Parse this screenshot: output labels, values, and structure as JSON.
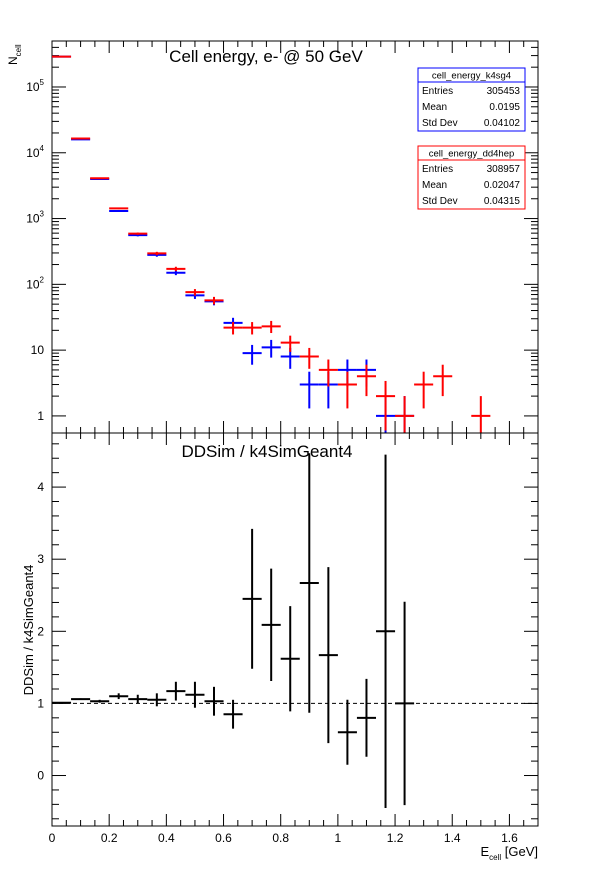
{
  "chart_data": [
    {
      "type": "scatter",
      "subtype": "histogram-errorbars",
      "title": "Cell energy,  e- @ 50 GeV",
      "xlabel": "",
      "ylabel_main": "N",
      "ylabel_sub": "cell",
      "yscale": "log",
      "xlim": [
        0,
        1.7
      ],
      "ylim": [
        0.55,
        500000
      ],
      "ytick_labels": [
        {
          "v": 1,
          "label": "1"
        },
        {
          "v": 10,
          "label": "10"
        },
        {
          "v": 100,
          "label": "10",
          "exp": "2"
        },
        {
          "v": 1000,
          "label": "10",
          "exp": "3"
        },
        {
          "v": 10000,
          "label": "10",
          "exp": "4"
        },
        {
          "v": 100000,
          "label": "10",
          "exp": "5"
        }
      ],
      "bin_width": 0.0667,
      "series": [
        {
          "name": "cell_energy_k4sg4",
          "color": "#0000ff",
          "stats": [
            [
              "Entries",
              "305453"
            ],
            [
              "Mean",
              "0.0195"
            ],
            [
              "Std Dev",
              "0.04102"
            ]
          ],
          "points": [
            {
              "x": 0.0333,
              "y": 290000,
              "yerr_lo": 540,
              "yerr_hi": 540
            },
            {
              "x": 0.1,
              "y": 16000,
              "yerr_lo": 126,
              "yerr_hi": 126
            },
            {
              "x": 0.1667,
              "y": 4000,
              "yerr_lo": 63,
              "yerr_hi": 63
            },
            {
              "x": 0.2333,
              "y": 1300,
              "yerr_lo": 36,
              "yerr_hi": 36
            },
            {
              "x": 0.3,
              "y": 560,
              "yerr_lo": 24,
              "yerr_hi": 24
            },
            {
              "x": 0.3667,
              "y": 280,
              "yerr_lo": 17,
              "yerr_hi": 17
            },
            {
              "x": 0.4333,
              "y": 150,
              "yerr_lo": 12,
              "yerr_hi": 12
            },
            {
              "x": 0.5,
              "y": 68,
              "yerr_lo": 8,
              "yerr_hi": 8
            },
            {
              "x": 0.5667,
              "y": 55,
              "yerr_lo": 7,
              "yerr_hi": 7
            },
            {
              "x": 0.6333,
              "y": 26,
              "yerr_lo": 5,
              "yerr_hi": 5
            },
            {
              "x": 0.7,
              "y": 9,
              "yerr_lo": 3,
              "yerr_hi": 3
            },
            {
              "x": 0.7667,
              "y": 11,
              "yerr_lo": 3.3,
              "yerr_hi": 3.3
            },
            {
              "x": 0.8333,
              "y": 8,
              "yerr_lo": 2.8,
              "yerr_hi": 2.8
            },
            {
              "x": 0.9,
              "y": 3,
              "yerr_lo": 1.7,
              "yerr_hi": 1.7
            },
            {
              "x": 0.9667,
              "y": 3,
              "yerr_lo": 1.7,
              "yerr_hi": 1.7
            },
            {
              "x": 1.0333,
              "y": 5,
              "yerr_lo": 2.2,
              "yerr_hi": 2.2
            },
            {
              "x": 1.1,
              "y": 5,
              "yerr_lo": 2.2,
              "yerr_hi": 2.2
            },
            {
              "x": 1.1667,
              "y": 1,
              "yerr_lo": 1,
              "yerr_hi": 1
            },
            {
              "x": 1.2333,
              "y": 1,
              "yerr_lo": 1,
              "yerr_hi": 1
            }
          ]
        },
        {
          "name": "cell_energy_dd4hep",
          "color": "#ff0000",
          "stats": [
            [
              "Entries",
              "308957"
            ],
            [
              "Mean",
              "0.02047"
            ],
            [
              "Std Dev",
              "0.04315"
            ]
          ],
          "points": [
            {
              "x": 0.0333,
              "y": 290000,
              "yerr_lo": 540,
              "yerr_hi": 540
            },
            {
              "x": 0.1,
              "y": 16500,
              "yerr_lo": 128,
              "yerr_hi": 128
            },
            {
              "x": 0.1667,
              "y": 4100,
              "yerr_lo": 64,
              "yerr_hi": 64
            },
            {
              "x": 0.2333,
              "y": 1430,
              "yerr_lo": 38,
              "yerr_hi": 38
            },
            {
              "x": 0.3,
              "y": 590,
              "yerr_lo": 24,
              "yerr_hi": 24
            },
            {
              "x": 0.3667,
              "y": 295,
              "yerr_lo": 17,
              "yerr_hi": 17
            },
            {
              "x": 0.4333,
              "y": 172,
              "yerr_lo": 13,
              "yerr_hi": 13
            },
            {
              "x": 0.5,
              "y": 76,
              "yerr_lo": 8.7,
              "yerr_hi": 8.7
            },
            {
              "x": 0.5667,
              "y": 57,
              "yerr_lo": 7.5,
              "yerr_hi": 7.5
            },
            {
              "x": 0.6333,
              "y": 22,
              "yerr_lo": 4.7,
              "yerr_hi": 4.7
            },
            {
              "x": 0.7,
              "y": 22,
              "yerr_lo": 4.7,
              "yerr_hi": 4.7
            },
            {
              "x": 0.7667,
              "y": 23,
              "yerr_lo": 4.8,
              "yerr_hi": 4.8
            },
            {
              "x": 0.8333,
              "y": 13,
              "yerr_lo": 3.6,
              "yerr_hi": 3.6
            },
            {
              "x": 0.9,
              "y": 8,
              "yerr_lo": 2.8,
              "yerr_hi": 2.8
            },
            {
              "x": 0.9667,
              "y": 5,
              "yerr_lo": 2.2,
              "yerr_hi": 2.2
            },
            {
              "x": 1.0333,
              "y": 3,
              "yerr_lo": 1.7,
              "yerr_hi": 1.7
            },
            {
              "x": 1.1,
              "y": 4,
              "yerr_lo": 2,
              "yerr_hi": 2
            },
            {
              "x": 1.1667,
              "y": 2,
              "yerr_lo": 1.4,
              "yerr_hi": 1.4
            },
            {
              "x": 1.2333,
              "y": 1,
              "yerr_lo": 1,
              "yerr_hi": 1
            },
            {
              "x": 1.3,
              "y": 3,
              "yerr_lo": 1.7,
              "yerr_hi": 1.7
            },
            {
              "x": 1.3667,
              "y": 4,
              "yerr_lo": 2,
              "yerr_hi": 2
            },
            {
              "x": 1.5,
              "y": 1,
              "yerr_lo": 1,
              "yerr_hi": 1
            }
          ]
        }
      ]
    },
    {
      "type": "scatter",
      "subtype": "ratio-errorbars",
      "title": "DDSim / k4SimGeant4",
      "xlabel_main": "E",
      "xlabel_sub": "cell",
      "xlabel_unit": " [GeV]",
      "ylabel": "DDSim / k4SimGeant4",
      "xlim": [
        0,
        1.7
      ],
      "ylim": [
        -0.7,
        4.75
      ],
      "xticks": [
        0,
        0.2,
        0.4,
        0.6,
        0.8,
        1,
        1.2,
        1.4,
        1.6
      ],
      "xtick_labels": [
        "0",
        "0.2",
        "0.4",
        "0.6",
        "0.8",
        "1",
        "1.2",
        "1.4",
        "1.6"
      ],
      "yticks": [
        0,
        1,
        2,
        3,
        4
      ],
      "ytick_labels": [
        "0",
        "1",
        "2",
        "3",
        "4"
      ],
      "reference_line": 1,
      "bin_width": 0.0667,
      "series": [
        {
          "color": "#000000",
          "points": [
            {
              "x": 0.0333,
              "y": 1.01,
              "yerr": 0.005
            },
            {
              "x": 0.1,
              "y": 1.06,
              "yerr": 0.01
            },
            {
              "x": 0.1667,
              "y": 1.03,
              "yerr": 0.02
            },
            {
              "x": 0.2333,
              "y": 1.1,
              "yerr": 0.04
            },
            {
              "x": 0.3,
              "y": 1.06,
              "yerr": 0.06
            },
            {
              "x": 0.3667,
              "y": 1.05,
              "yerr": 0.09
            },
            {
              "x": 0.4333,
              "y": 1.17,
              "yerr": 0.13
            },
            {
              "x": 0.5,
              "y": 1.12,
              "yerr": 0.18
            },
            {
              "x": 0.5667,
              "y": 1.03,
              "yerr": 0.2
            },
            {
              "x": 0.6333,
              "y": 0.85,
              "yerr": 0.2
            },
            {
              "x": 0.7,
              "y": 2.45,
              "yerr": 0.97
            },
            {
              "x": 0.7667,
              "y": 2.09,
              "yerr": 0.78
            },
            {
              "x": 0.8333,
              "y": 1.62,
              "yerr": 0.73
            },
            {
              "x": 0.9,
              "y": 2.67,
              "yerr": 1.8
            },
            {
              "x": 0.9667,
              "y": 1.67,
              "yerr": 1.22
            },
            {
              "x": 1.0333,
              "y": 0.6,
              "yerr": 0.45
            },
            {
              "x": 1.1,
              "y": 0.8,
              "yerr": 0.54
            },
            {
              "x": 1.1667,
              "y": 2.0,
              "yerr": 2.45
            },
            {
              "x": 1.2333,
              "y": 1.0,
              "yerr": 1.41
            }
          ]
        }
      ]
    }
  ]
}
